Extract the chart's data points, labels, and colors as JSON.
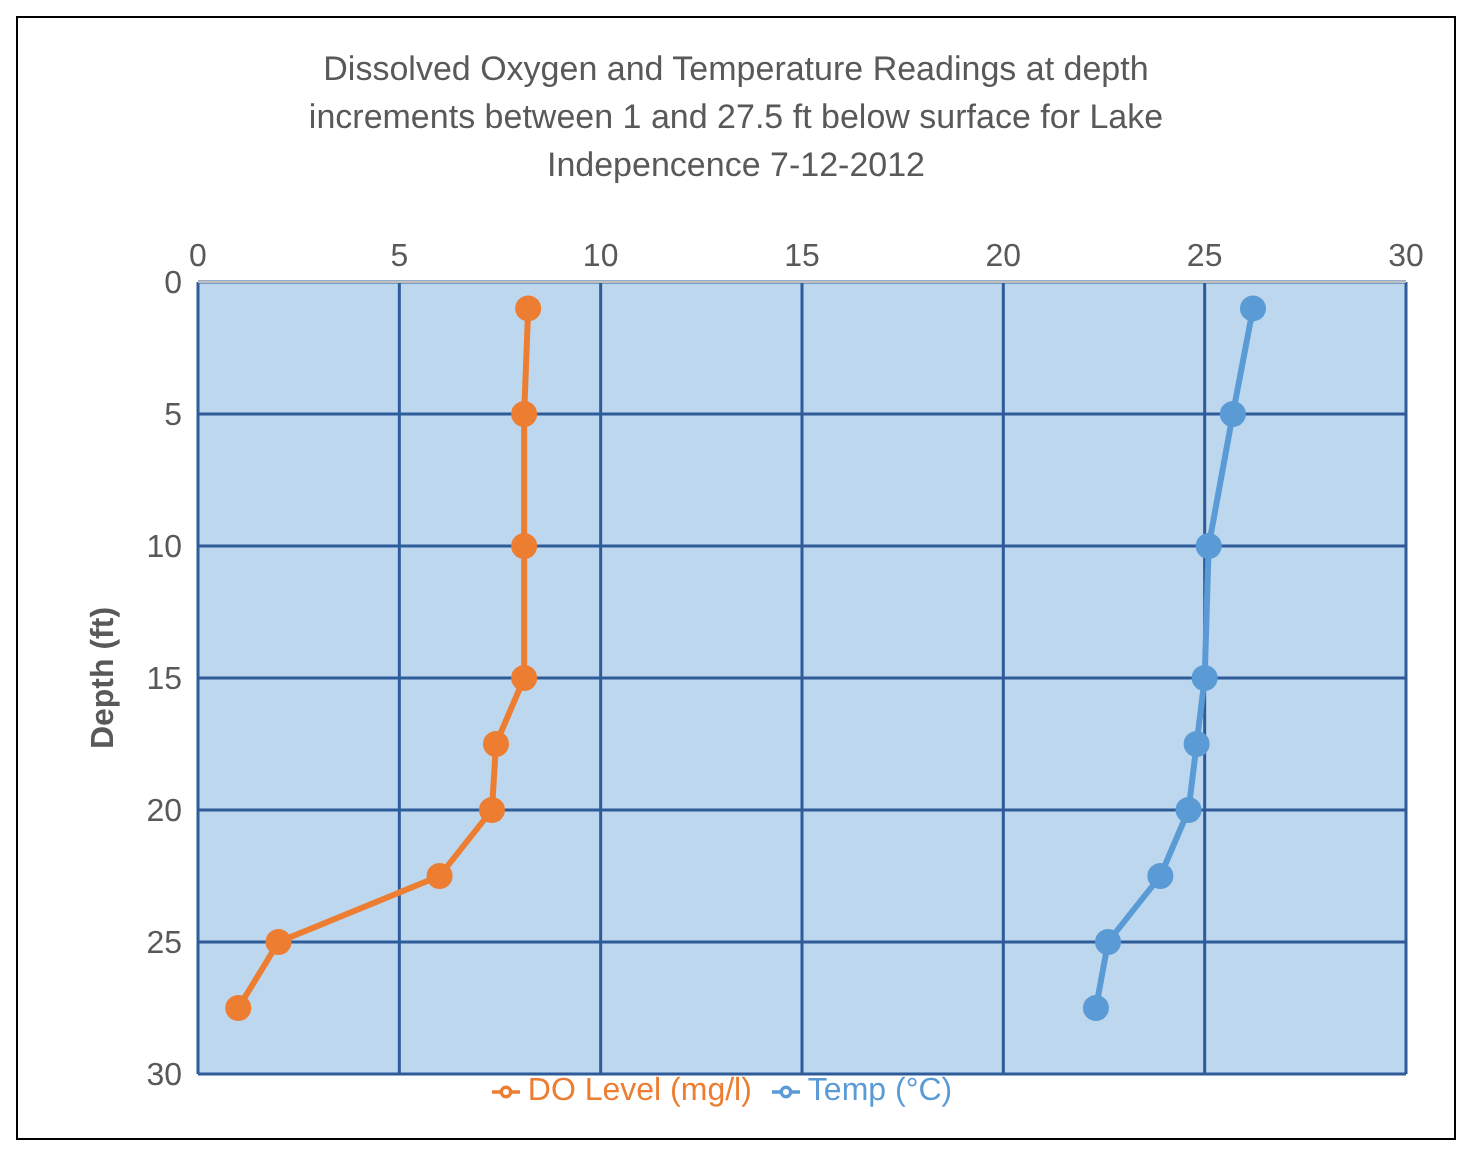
{
  "chart_data": {
    "type": "line",
    "title": "Dissolved Oxygen and Temperature Readings at depth increments between 1 and 27.5 ft below surface for Lake Indepencence 7-12-2012",
    "ylabel": "Depth (ft)",
    "series": [
      {
        "name": "Temp (°C)",
        "color": "#5b9bd5",
        "x": [
          26.2,
          25.7,
          25.1,
          25.0,
          24.8,
          24.6,
          23.9,
          22.6,
          22.3
        ],
        "values": [
          1,
          5,
          10,
          15,
          17.5,
          20,
          22.5,
          25,
          27.5
        ]
      },
      {
        "name": "DO Level (mg/l)",
        "color": "#ed7d31",
        "x": [
          8.2,
          8.1,
          8.1,
          8.1,
          7.4,
          7.3,
          6.0,
          2.0,
          1.0
        ],
        "values": [
          1,
          5,
          10,
          15,
          17.5,
          20,
          22.5,
          25,
          27.5
        ]
      }
    ],
    "xlim": [
      0,
      30
    ],
    "xticks": [
      0,
      5,
      10,
      15,
      20,
      25,
      30
    ],
    "ylim": [
      30,
      0
    ],
    "yticks": [
      0,
      5,
      10,
      15,
      20,
      25,
      30
    ],
    "grid": true,
    "legend": "bottom",
    "marker": "circle",
    "line_style": "solid"
  }
}
